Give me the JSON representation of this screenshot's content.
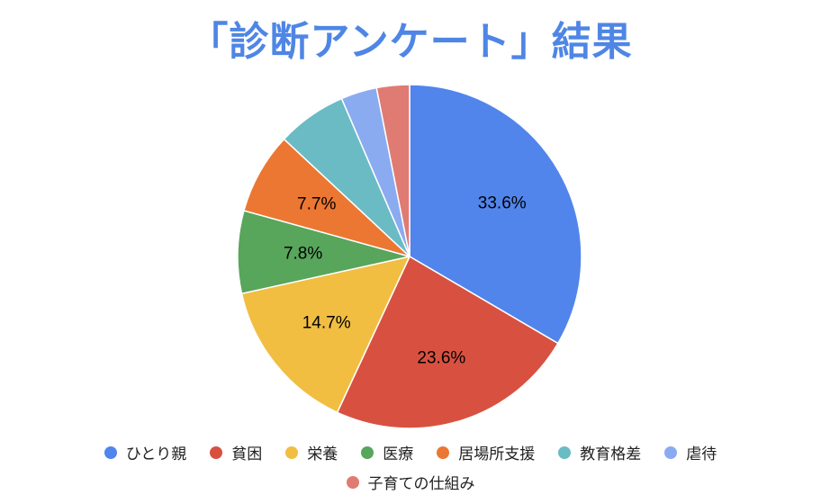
{
  "title": "「診断アンケート」結果",
  "title_color": "#4f86e5",
  "chart_data": {
    "type": "pie",
    "title": "「診断アンケート」結果",
    "legend_position": "bottom",
    "slices": [
      {
        "name": "ひとり親",
        "value": 33.6,
        "label": "33.6%",
        "color": "#5185ec"
      },
      {
        "name": "貧困",
        "value": 23.6,
        "label": "23.6%",
        "color": "#d85140"
      },
      {
        "name": "栄養",
        "value": 14.7,
        "label": "14.7%",
        "color": "#f1be42"
      },
      {
        "name": "医療",
        "value": 7.8,
        "label": "7.8%",
        "color": "#58a55c"
      },
      {
        "name": "居場所支援",
        "value": 7.7,
        "label": "7.7%",
        "color": "#ec7732"
      },
      {
        "name": "教育格差",
        "value": 6.6,
        "label": "",
        "color": "#6bbbc5"
      },
      {
        "name": "虐待",
        "value": 3.4,
        "label": "",
        "color": "#8aabf0"
      },
      {
        "name": "子育ての仕組み",
        "value": 3.1,
        "label": "",
        "color": "#e07b73"
      }
    ]
  }
}
